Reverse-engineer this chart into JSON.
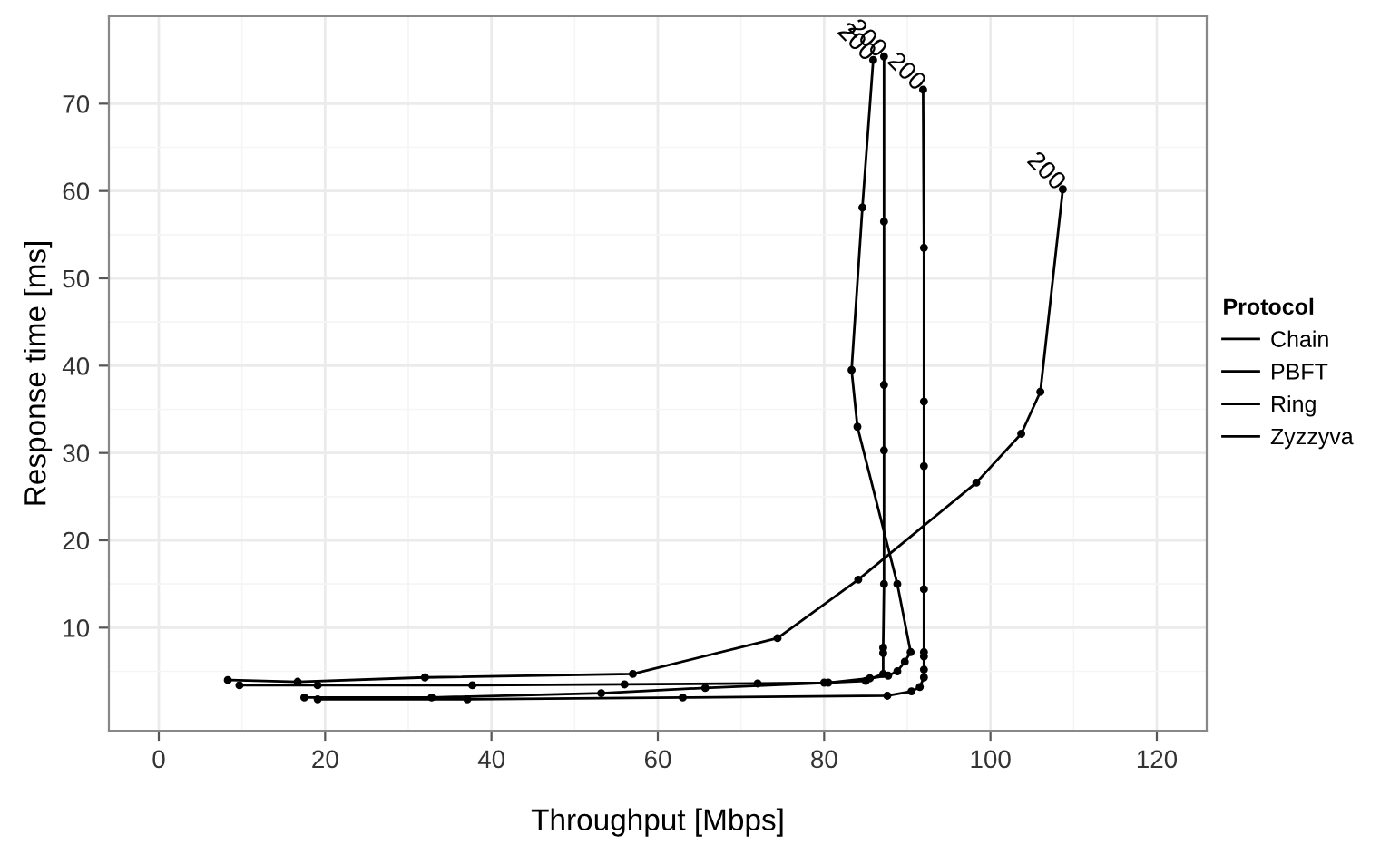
{
  "chart_data": {
    "type": "line",
    "xlabel": "Throughput [Mbps]",
    "ylabel": "Response time [ms]",
    "legend_title": "Protocol",
    "legend": "right",
    "grid": true,
    "marker": "circle",
    "line_style": "solid",
    "xlim": [
      -6,
      126
    ],
    "xticks": [
      0,
      20,
      40,
      60,
      80,
      100,
      120
    ],
    "ylim": [
      -1.8,
      80
    ],
    "yticks": [
      10,
      20,
      30,
      40,
      50,
      60,
      70
    ],
    "series": [
      {
        "name": "Chain",
        "color": "#000000",
        "x": [
          8.3,
          16.7,
          32,
          57,
          74.4,
          84.1,
          98.3,
          103.7,
          106,
          108.7
        ],
        "values": [
          4.0,
          3.8,
          4.3,
          4.7,
          8.8,
          15.5,
          26.6,
          32.2,
          37,
          60.2
        ]
      },
      {
        "name": "PBFT",
        "color": "#000000",
        "x": [
          9.7,
          19.1,
          37.7,
          56,
          72,
          80,
          85,
          87.1,
          87.1,
          87.1,
          87.2,
          87.2,
          87.2,
          87.2,
          87.2
        ],
        "values": [
          3.4,
          3.4,
          3.4,
          3.5,
          3.6,
          3.7,
          3.9,
          4.7,
          7.1,
          7.7,
          15,
          30.3,
          37.8,
          56.5,
          75.4
        ]
      },
      {
        "name": "Ring",
        "color": "#000000",
        "x": [
          19.1,
          37.1,
          63,
          87.6,
          90.5,
          91.5,
          92,
          92,
          92,
          92,
          92,
          92,
          92,
          92,
          91.9
        ],
        "values": [
          1.8,
          1.8,
          2.0,
          2.2,
          2.7,
          3.2,
          4.3,
          5.2,
          6.7,
          7.2,
          14.4,
          28.5,
          35.9,
          53.5,
          71.6
        ]
      },
      {
        "name": "Zyzzyva",
        "color": "#000000",
        "x": [
          17.5,
          32.8,
          53.2,
          65.7,
          80.5,
          85.5,
          87.7,
          88.8,
          89.7,
          90.4,
          88.8,
          84.0,
          83.3,
          84.6,
          85.9
        ],
        "values": [
          2.0,
          2.0,
          2.5,
          3.1,
          3.7,
          4.2,
          4.5,
          5.0,
          6.1,
          7.2,
          15.0,
          33,
          39.5,
          58.1,
          75.0
        ]
      }
    ],
    "annotations": [
      {
        "text": "200",
        "x": 108.7,
        "y": 60.2
      },
      {
        "text": "200",
        "x": 87.2,
        "y": 75.4
      },
      {
        "text": "200",
        "x": 91.9,
        "y": 71.6
      },
      {
        "text": "200",
        "x": 85.9,
        "y": 75.0
      }
    ]
  }
}
